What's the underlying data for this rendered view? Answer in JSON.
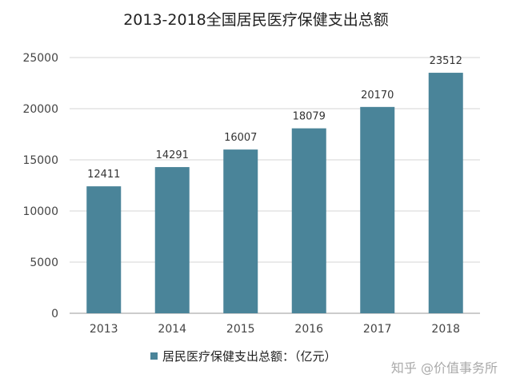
{
  "chart_data": {
    "type": "bar",
    "title": "2013-2018全国居民医疗保健支出总额",
    "categories": [
      "2013",
      "2014",
      "2015",
      "2016",
      "2017",
      "2018"
    ],
    "series": [
      {
        "name": "居民医疗保健支出总额：（亿元）",
        "values": [
          12411,
          14291,
          16007,
          18079,
          20170,
          23512
        ]
      }
    ],
    "ylim": [
      0,
      25000
    ],
    "yticks": [
      "0",
      "5000",
      "10000",
      "15000",
      "20000",
      "25000"
    ],
    "grid": true,
    "legend_position": "bottom",
    "bar_color": "#4a8499"
  },
  "watermark": "知乎 @价值事务所"
}
